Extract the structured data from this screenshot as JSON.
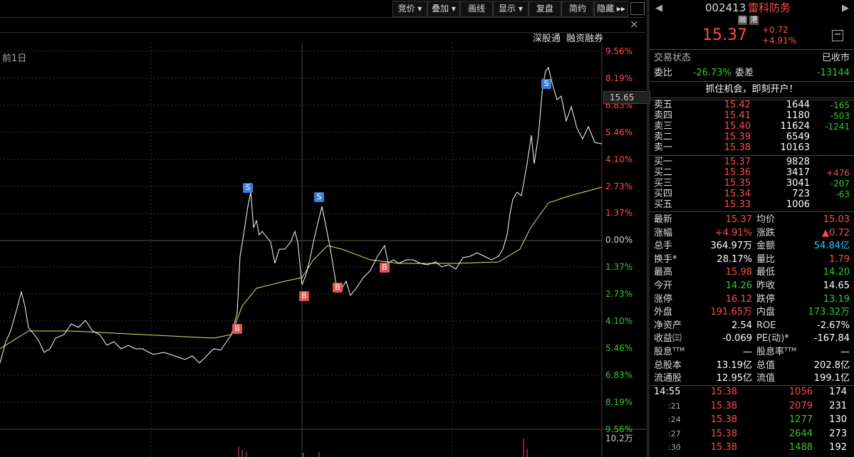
{
  "toolbar": {
    "buttons": [
      "竞价 ▾",
      "叠加 ▾",
      "画线",
      "显示 ▾",
      "复盘",
      "简约",
      "隐藏 ▸▸"
    ]
  },
  "chart": {
    "tags": [
      "深股通",
      "融资融券"
    ],
    "period": "前1日",
    "price_marker": "15.65",
    "volume_label": "10.2万",
    "axis_labels": [
      "9.56%",
      "8.19%",
      "6.83%",
      "5.46%",
      "4.10%",
      "2.73%",
      "1.37%",
      "0.00%",
      "1.37%",
      "2.73%",
      "4.10%",
      "5.46%",
      "6.83%",
      "8.19%",
      "9.56%"
    ],
    "axis_colors": [
      "#ff4d4d",
      "#ff4d4d",
      "#ff4d4d",
      "#ff4d4d",
      "#ff4d4d",
      "#ff4d4d",
      "#ff4d4d",
      "#cccccc",
      "#2ecc2e",
      "#2ecc2e",
      "#2ecc2e",
      "#2ecc2e",
      "#2ecc2e",
      "#2ecc2e",
      "#2ecc2e"
    ],
    "markers": [
      "S",
      "S",
      "S",
      "B",
      "B",
      "B",
      "B"
    ]
  },
  "quote": {
    "code": "002413",
    "name": "雷科防务",
    "badges": [
      "融",
      "港"
    ],
    "price": "15.37",
    "change": "+0.72",
    "change_pct": "+4.91%",
    "status_label": "交易状态",
    "status": "已收市",
    "wb_label": "委比",
    "wb": "-26.73%",
    "wc_label": "委差",
    "wc": "-13144",
    "promo": "抓住机会，即刻开户！"
  },
  "orderbook": {
    "asks": [
      [
        "卖五",
        "15.42",
        "1644",
        "-165"
      ],
      [
        "卖四",
        "15.41",
        "1180",
        "-503"
      ],
      [
        "卖三",
        "15.40",
        "11624",
        "-1241"
      ],
      [
        "卖二",
        "15.39",
        "6549",
        ""
      ],
      [
        "卖一",
        "15.38",
        "10163",
        ""
      ]
    ],
    "bids": [
      [
        "买一",
        "15.37",
        "9828",
        ""
      ],
      [
        "买二",
        "15.36",
        "3417",
        "+476"
      ],
      [
        "买三",
        "15.35",
        "3041",
        "-207"
      ],
      [
        "买四",
        "15.34",
        "723",
        "-63"
      ],
      [
        "买五",
        "15.33",
        "1006",
        ""
      ]
    ]
  },
  "stats": {
    "rows": [
      [
        "最新",
        "15.37",
        "均价",
        "15.03"
      ],
      [
        "涨幅",
        "+4.91%",
        "涨跌",
        "▲0.72"
      ],
      [
        "总手",
        "364.97万",
        "金额",
        "54.84亿"
      ],
      [
        "换手*",
        "28.17%",
        "量比",
        "1.79"
      ],
      [
        "最高",
        "15.98",
        "最低",
        "14.20"
      ],
      [
        "今开",
        "14.26",
        "昨收",
        "14.65"
      ],
      [
        "涨停",
        "16.12",
        "跌停",
        "13.19"
      ],
      [
        "外盘",
        "191.65万",
        "内盘",
        "173.32万"
      ],
      [
        "净资产",
        "2.54",
        "ROE",
        "-2.67%"
      ],
      [
        "收益㈢",
        "-0.069",
        "PE(动)*",
        "-167.84"
      ],
      [
        "股息ᵀᵀᴹ",
        "—",
        "股息率ᵀᵀᴹ",
        "—"
      ],
      [
        "总股本",
        "13.19亿",
        "总值",
        "202.8亿"
      ],
      [
        "流通股",
        "12.95亿",
        "流值",
        "199.1亿"
      ]
    ],
    "colors": [
      [
        "#ff4d4d",
        "#ff4d4d"
      ],
      [
        "#ff4d4d",
        "#ff4d4d"
      ],
      [
        "#ffffff",
        "#22ccff"
      ],
      [
        "#ffffff",
        "#ff4d4d"
      ],
      [
        "#ff4d4d",
        "#2ecc2e"
      ],
      [
        "#2ecc2e",
        "#ffffff"
      ],
      [
        "#ff4d4d",
        "#2ecc2e"
      ],
      [
        "#ff4d4d",
        "#2ecc2e"
      ],
      [
        "#ffffff",
        "#ffffff"
      ],
      [
        "#ffffff",
        "#ffffff"
      ],
      [
        "#ffffff",
        "#ffffff"
      ],
      [
        "#ffffff",
        "#ffffff"
      ],
      [
        "#ffffff",
        "#ffffff"
      ]
    ]
  },
  "trades": {
    "rows": [
      [
        "14:55",
        "15.38",
        "1056",
        "174"
      ],
      [
        ":21",
        "15.38",
        "2079",
        "231"
      ],
      [
        ":24",
        "15.38",
        "1277",
        "130"
      ],
      [
        ":27",
        "15.38",
        "2644",
        "273"
      ],
      [
        ":30",
        "15.38",
        "1488",
        "192"
      ]
    ],
    "vol_colors": [
      "#ff4d4d",
      "#ff4d4d",
      "#2ecc2e",
      "#2ecc2e",
      "#2ecc2e"
    ]
  }
}
